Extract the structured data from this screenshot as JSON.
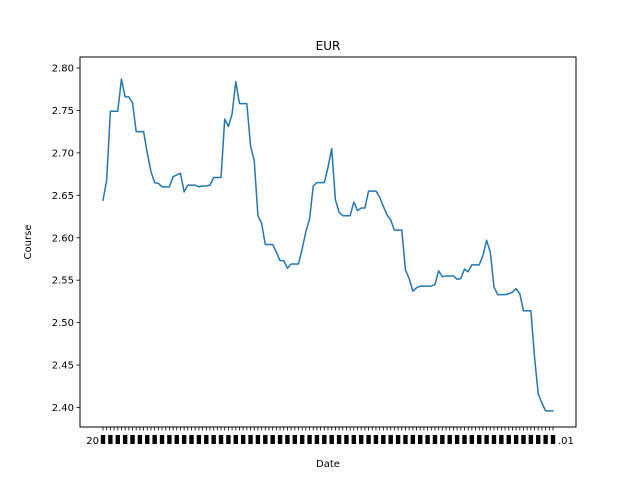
{
  "chart_data": {
    "type": "line",
    "title": "EUR",
    "xlabel": "Date",
    "ylabel": "Course",
    "ylim": [
      2.377,
      2.813
    ],
    "yticks": [
      "2.40",
      "2.45",
      "2.50",
      "2.55",
      "2.60",
      "2.65",
      "2.70",
      "2.75",
      "2.80"
    ],
    "grid": false,
    "legend": "none",
    "line_color": "#1f77b4",
    "x_tick_labels_overlapping": true,
    "x_tick_label_start": "20",
    "x_tick_label_end": ".01",
    "series": [
      {
        "values": [
          2.644,
          2.668,
          2.749,
          2.749,
          2.749,
          2.787,
          2.766,
          2.766,
          2.759,
          2.725,
          2.725,
          2.725,
          2.7,
          2.678,
          2.665,
          2.664,
          2.66,
          2.66,
          2.66,
          2.672,
          2.674,
          2.676,
          2.654,
          2.662,
          2.662,
          2.662,
          2.66,
          2.661,
          2.661,
          2.662,
          2.671,
          2.671,
          2.671,
          2.74,
          2.731,
          2.746,
          2.784,
          2.758,
          2.758,
          2.758,
          2.708,
          2.691,
          2.626,
          2.617,
          2.592,
          2.592,
          2.592,
          2.583,
          2.573,
          2.573,
          2.564,
          2.569,
          2.569,
          2.569,
          2.587,
          2.607,
          2.622,
          2.661,
          2.665,
          2.665,
          2.665,
          2.683,
          2.705,
          2.645,
          2.63,
          2.626,
          2.626,
          2.626,
          2.642,
          2.632,
          2.635,
          2.635,
          2.655,
          2.655,
          2.655,
          2.648,
          2.637,
          2.627,
          2.621,
          2.609,
          2.609,
          2.609,
          2.562,
          2.552,
          2.537,
          2.541,
          2.543,
          2.543,
          2.543,
          2.543,
          2.545,
          2.561,
          2.554,
          2.555,
          2.555,
          2.555,
          2.551,
          2.552,
          2.563,
          2.56,
          2.568,
          2.568,
          2.568,
          2.579,
          2.597,
          2.583,
          2.542,
          2.533,
          2.533,
          2.533,
          2.534,
          2.536,
          2.54,
          2.534,
          2.514,
          2.514,
          2.514,
          2.459,
          2.416,
          2.405,
          2.396,
          2.396,
          2.396
        ]
      }
    ]
  }
}
